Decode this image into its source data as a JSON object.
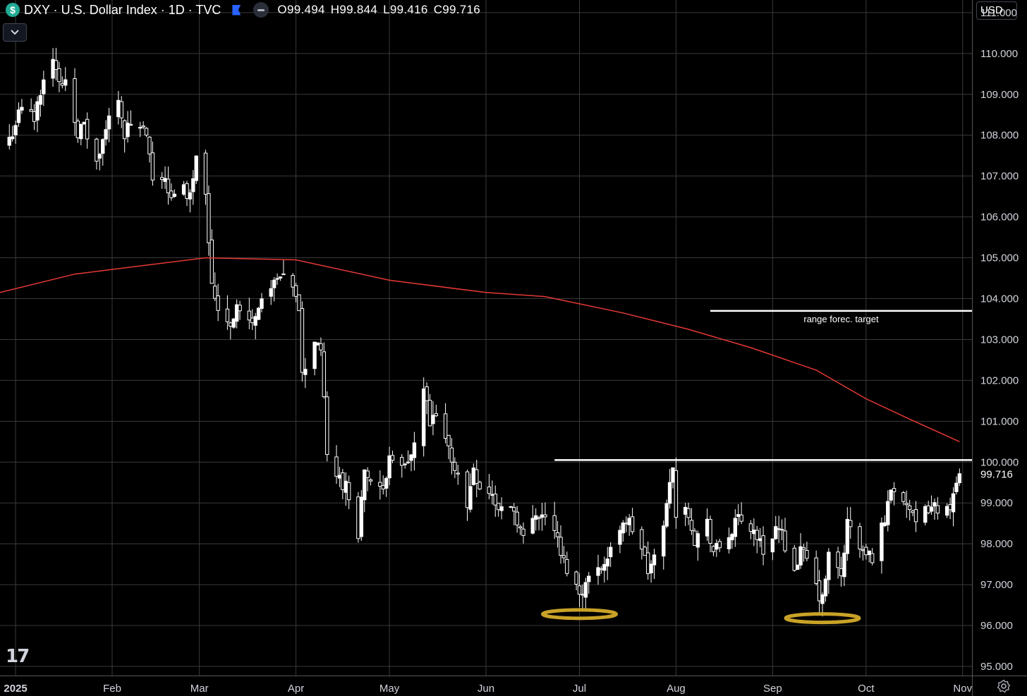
{
  "header": {
    "symbol_badge": "$",
    "title": "DXY · U.S. Dollar Index · 1D · TVC",
    "ohlc": {
      "open": "O99.494",
      "high": "H99.844",
      "low": "L99.416",
      "close": "C99.716"
    },
    "currency": "USD",
    "logo": "17"
  },
  "colors": {
    "background": "#000000",
    "grid": "#3a3a3a",
    "candle": "#ffffff",
    "moving_average": "#e53935",
    "annotation": "#ffffff",
    "highlight": "#c9a227"
  },
  "icons": [
    "dollar-icon",
    "flag-icon",
    "eye-icon",
    "chevron-down-icon",
    "tradingview-logo-icon",
    "settings-icon"
  ],
  "chart_data": {
    "type": "candlestick",
    "y_axis": {
      "ticks": [
        "111.000",
        "110.000",
        "109.000",
        "108.000",
        "107.000",
        "106.000",
        "105.000",
        "104.000",
        "103.000",
        "102.000",
        "101.000",
        "100.000",
        "99.000",
        "98.000",
        "97.000",
        "96.000",
        "95.000"
      ],
      "tick_values": [
        111,
        110,
        109,
        108,
        107,
        106,
        105,
        104,
        103,
        102,
        101,
        100,
        99,
        98,
        97,
        96,
        95
      ],
      "range": [
        95,
        111.05
      ]
    },
    "x_axis": {
      "labels": [
        "2025",
        "Feb",
        "Mar",
        "Apr",
        "May",
        "Jun",
        "Jul",
        "Aug",
        "Sep",
        "Oct",
        "Nov"
      ],
      "dates": [
        "2025-01-01",
        "2025-02-01",
        "2025-03-01",
        "2025-04-01",
        "2025-05-01",
        "2025-06-01",
        "2025-07-01",
        "2025-08-01",
        "2025-09-01",
        "2025-10-01",
        "2025-11-01"
      ],
      "range": [
        "2024-12-27",
        "2025-11-04"
      ]
    },
    "last_price_label": "99.716",
    "series": [
      {
        "name": "DXY",
        "kind": "close_path",
        "points": [
          [
            "2024-12-30",
            107.9
          ],
          [
            "2025-01-01",
            108.3
          ],
          [
            "2025-01-03",
            108.7
          ],
          [
            "2025-01-07",
            108.4
          ],
          [
            "2025-01-10",
            109.5
          ],
          [
            "2025-01-13",
            109.9
          ],
          [
            "2025-01-15",
            109.2
          ],
          [
            "2025-01-17",
            109.4
          ],
          [
            "2025-01-21",
            108.1
          ],
          [
            "2025-01-23",
            108.2
          ],
          [
            "2025-01-27",
            107.3
          ],
          [
            "2025-01-29",
            107.8
          ],
          [
            "2025-01-31",
            108.4
          ],
          [
            "2025-02-03",
            109.0
          ],
          [
            "2025-02-05",
            108.0
          ],
          [
            "2025-02-07",
            108.3
          ],
          [
            "2025-02-10",
            108.1
          ],
          [
            "2025-02-12",
            108.0
          ],
          [
            "2025-02-14",
            106.8
          ],
          [
            "2025-02-18",
            107.0
          ],
          [
            "2025-02-20",
            106.4
          ],
          [
            "2025-02-24",
            106.7
          ],
          [
            "2025-02-26",
            106.5
          ],
          [
            "2025-02-28",
            107.6
          ],
          [
            "2025-03-03",
            106.7
          ],
          [
            "2025-03-05",
            104.3
          ],
          [
            "2025-03-07",
            103.8
          ],
          [
            "2025-03-11",
            103.4
          ],
          [
            "2025-03-13",
            103.8
          ],
          [
            "2025-03-17",
            103.4
          ],
          [
            "2025-03-19",
            103.5
          ],
          [
            "2025-03-21",
            104.1
          ],
          [
            "2025-03-25",
            104.3
          ],
          [
            "2025-03-27",
            104.5
          ],
          [
            "2025-03-31",
            104.2
          ],
          [
            "2025-04-02",
            103.8
          ],
          [
            "2025-04-03",
            102.1
          ],
          [
            "2025-04-07",
            103.0
          ],
          [
            "2025-04-09",
            102.8
          ],
          [
            "2025-04-11",
            100.1
          ],
          [
            "2025-04-15",
            99.6
          ],
          [
            "2025-04-17",
            99.4
          ],
          [
            "2025-04-21",
            98.3
          ],
          [
            "2025-04-23",
            99.8
          ],
          [
            "2025-04-25",
            99.5
          ],
          [
            "2025-04-29",
            99.2
          ],
          [
            "2025-05-01",
            100.3
          ],
          [
            "2025-05-05",
            99.8
          ],
          [
            "2025-05-07",
            99.9
          ],
          [
            "2025-05-09",
            100.4
          ],
          [
            "2025-05-12",
            101.8
          ],
          [
            "2025-05-14",
            100.9
          ],
          [
            "2025-05-16",
            101.1
          ],
          [
            "2025-05-20",
            100.3
          ],
          [
            "2025-05-22",
            99.9
          ],
          [
            "2025-05-26",
            98.9
          ],
          [
            "2025-05-28",
            99.9
          ],
          [
            "2025-05-30",
            99.4
          ],
          [
            "2025-06-03",
            99.2
          ],
          [
            "2025-06-05",
            98.8
          ],
          [
            "2025-06-09",
            99.0
          ],
          [
            "2025-06-11",
            98.6
          ],
          [
            "2025-06-13",
            98.1
          ],
          [
            "2025-06-17",
            98.8
          ],
          [
            "2025-06-19",
            98.7
          ],
          [
            "2025-06-23",
            98.4
          ],
          [
            "2025-06-25",
            97.7
          ],
          [
            "2025-06-27",
            97.4
          ],
          [
            "2025-07-01",
            96.8
          ],
          [
            "2025-07-03",
            97.0
          ],
          [
            "2025-07-07",
            97.5
          ],
          [
            "2025-07-09",
            97.5
          ],
          [
            "2025-07-11",
            97.8
          ],
          [
            "2025-07-15",
            98.6
          ],
          [
            "2025-07-17",
            98.5
          ],
          [
            "2025-07-21",
            97.9
          ],
          [
            "2025-07-23",
            97.3
          ],
          [
            "2025-07-25",
            97.6
          ],
          [
            "2025-07-29",
            98.9
          ],
          [
            "2025-07-31",
            100.0
          ],
          [
            "2025-08-01",
            98.7
          ],
          [
            "2025-08-05",
            98.8
          ],
          [
            "2025-08-07",
            98.1
          ],
          [
            "2025-08-11",
            98.5
          ],
          [
            "2025-08-13",
            97.8
          ],
          [
            "2025-08-15",
            97.9
          ],
          [
            "2025-08-19",
            98.3
          ],
          [
            "2025-08-21",
            98.6
          ],
          [
            "2025-08-25",
            98.4
          ],
          [
            "2025-08-27",
            98.2
          ],
          [
            "2025-08-29",
            97.8
          ],
          [
            "2025-09-02",
            98.4
          ],
          [
            "2025-09-04",
            98.2
          ],
          [
            "2025-09-08",
            97.4
          ],
          [
            "2025-09-10",
            97.8
          ],
          [
            "2025-09-12",
            97.6
          ],
          [
            "2025-09-16",
            96.7
          ],
          [
            "2025-09-17",
            96.6
          ],
          [
            "2025-09-19",
            97.7
          ],
          [
            "2025-09-23",
            97.2
          ],
          [
            "2025-09-25",
            98.5
          ],
          [
            "2025-09-29",
            97.9
          ],
          [
            "2025-10-01",
            97.7
          ],
          [
            "2025-10-03",
            97.7
          ],
          [
            "2025-10-07",
            98.6
          ],
          [
            "2025-10-09",
            99.4
          ],
          [
            "2025-10-13",
            99.2
          ],
          [
            "2025-10-15",
            98.8
          ],
          [
            "2025-10-17",
            98.4
          ],
          [
            "2025-10-21",
            98.9
          ],
          [
            "2025-10-24",
            98.9
          ],
          [
            "2025-10-27",
            98.8
          ],
          [
            "2025-10-29",
            99.2
          ],
          [
            "2025-10-31",
            99.716
          ]
        ]
      },
      {
        "name": "MA",
        "kind": "line",
        "points": [
          [
            "2024-12-27",
            104.15
          ],
          [
            "2025-01-20",
            104.6
          ],
          [
            "2025-02-10",
            104.8
          ],
          [
            "2025-03-03",
            105.0
          ],
          [
            "2025-04-01",
            104.95
          ],
          [
            "2025-05-01",
            104.45
          ],
          [
            "2025-06-01",
            104.15
          ],
          [
            "2025-06-20",
            104.05
          ],
          [
            "2025-07-15",
            103.65
          ],
          [
            "2025-08-05",
            103.25
          ],
          [
            "2025-08-25",
            102.8
          ],
          [
            "2025-09-15",
            102.25
          ],
          [
            "2025-10-01",
            101.55
          ],
          [
            "2025-10-15",
            101.05
          ],
          [
            "2025-10-31",
            100.5
          ]
        ]
      }
    ],
    "annotations": [
      {
        "kind": "hline",
        "value": 100.05,
        "from": "2025-06-23",
        "to": "2025-11-04"
      },
      {
        "kind": "hline",
        "value": 103.7,
        "from": "2025-08-12",
        "to": "2025-11-04",
        "label": "range forec. target"
      },
      {
        "kind": "ellipse",
        "date": "2025-07-01",
        "value": 96.28
      },
      {
        "kind": "ellipse",
        "date": "2025-09-17",
        "value": 96.18
      }
    ],
    "grid": true,
    "legend": "top-left"
  }
}
